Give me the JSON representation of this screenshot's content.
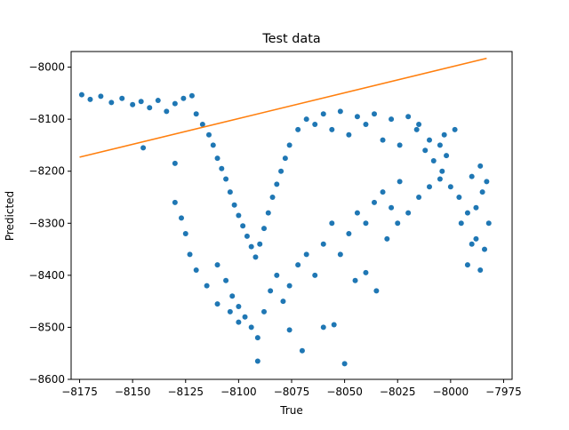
{
  "chart_data": {
    "type": "scatter",
    "title": "Test data",
    "xlabel": "True",
    "ylabel": "Predicted",
    "xlim": [
      -8179,
      -7971
    ],
    "ylim": [
      -8600,
      -7970
    ],
    "xticks": [
      -8175,
      -8150,
      -8125,
      -8100,
      -8075,
      -8050,
      -8025,
      -8000,
      -7975
    ],
    "xtick_labels": [
      "−8175",
      "−8150",
      "−8125",
      "−8100",
      "−8075",
      "−8050",
      "−8025",
      "−8000",
      "−7975"
    ],
    "yticks": [
      -8600,
      -8500,
      -8400,
      -8300,
      -8200,
      -8100,
      -8000
    ],
    "ytick_labels": [
      "−8600",
      "−8500",
      "−8400",
      "−8300",
      "−8200",
      "−8100",
      "−8000"
    ],
    "grid": false,
    "colors": {
      "scatter": "#1f77b4",
      "line": "#ff7f0e"
    },
    "series": [
      {
        "kind": "scatter",
        "points": [
          [
            -8174,
            -8053
          ],
          [
            -8170,
            -8062
          ],
          [
            -8165,
            -8056
          ],
          [
            -8160,
            -8068
          ],
          [
            -8155,
            -8060
          ],
          [
            -8150,
            -8072
          ],
          [
            -8146,
            -8066
          ],
          [
            -8142,
            -8078
          ],
          [
            -8138,
            -8064
          ],
          [
            -8134,
            -8085
          ],
          [
            -8130,
            -8070
          ],
          [
            -8126,
            -8060
          ],
          [
            -8122,
            -8055
          ],
          [
            -8120,
            -8090
          ],
          [
            -8117,
            -8110
          ],
          [
            -8114,
            -8130
          ],
          [
            -8112,
            -8150
          ],
          [
            -8110,
            -8175
          ],
          [
            -8108,
            -8195
          ],
          [
            -8106,
            -8215
          ],
          [
            -8104,
            -8240
          ],
          [
            -8102,
            -8265
          ],
          [
            -8100,
            -8285
          ],
          [
            -8098,
            -8305
          ],
          [
            -8096,
            -8325
          ],
          [
            -8094,
            -8345
          ],
          [
            -8092,
            -8365
          ],
          [
            -8090,
            -8340
          ],
          [
            -8088,
            -8310
          ],
          [
            -8086,
            -8280
          ],
          [
            -8084,
            -8250
          ],
          [
            -8082,
            -8225
          ],
          [
            -8080,
            -8200
          ],
          [
            -8078,
            -8175
          ],
          [
            -8076,
            -8150
          ],
          [
            -8072,
            -8120
          ],
          [
            -8068,
            -8100
          ],
          [
            -8064,
            -8110
          ],
          [
            -8060,
            -8090
          ],
          [
            -8056,
            -8120
          ],
          [
            -8052,
            -8085
          ],
          [
            -8048,
            -8130
          ],
          [
            -8044,
            -8095
          ],
          [
            -8040,
            -8110
          ],
          [
            -8036,
            -8090
          ],
          [
            -8032,
            -8140
          ],
          [
            -8028,
            -8100
          ],
          [
            -8024,
            -8150
          ],
          [
            -8020,
            -8095
          ],
          [
            -8016,
            -8120
          ],
          [
            -8012,
            -8160
          ],
          [
            -8008,
            -8180
          ],
          [
            -8004,
            -8200
          ],
          [
            -8000,
            -8230
          ],
          [
            -7996,
            -8250
          ],
          [
            -7992,
            -8280
          ],
          [
            -7988,
            -8330
          ],
          [
            -7985,
            -8240
          ],
          [
            -7983,
            -8220
          ],
          [
            -8110,
            -8380
          ],
          [
            -8106,
            -8410
          ],
          [
            -8103,
            -8440
          ],
          [
            -8100,
            -8460
          ],
          [
            -8097,
            -8480
          ],
          [
            -8094,
            -8500
          ],
          [
            -8091,
            -8520
          ],
          [
            -8088,
            -8470
          ],
          [
            -8085,
            -8430
          ],
          [
            -8082,
            -8400
          ],
          [
            -8079,
            -8450
          ],
          [
            -8076,
            -8420
          ],
          [
            -8072,
            -8380
          ],
          [
            -8068,
            -8360
          ],
          [
            -8064,
            -8400
          ],
          [
            -8060,
            -8340
          ],
          [
            -8056,
            -8300
          ],
          [
            -8052,
            -8360
          ],
          [
            -8048,
            -8320
          ],
          [
            -8044,
            -8280
          ],
          [
            -8040,
            -8300
          ],
          [
            -8036,
            -8260
          ],
          [
            -8032,
            -8240
          ],
          [
            -8028,
            -8270
          ],
          [
            -8024,
            -8220
          ],
          [
            -8091,
            -8565
          ],
          [
            -8070,
            -8545
          ],
          [
            -8050,
            -8570
          ],
          [
            -8060,
            -8500
          ],
          [
            -8055,
            -8495
          ],
          [
            -8076,
            -8505
          ],
          [
            -8100,
            -8490
          ],
          [
            -8104,
            -8470
          ],
          [
            -8110,
            -8455
          ],
          [
            -8115,
            -8420
          ],
          [
            -8120,
            -8390
          ],
          [
            -8123,
            -8360
          ],
          [
            -8125,
            -8320
          ],
          [
            -8127,
            -8290
          ],
          [
            -8130,
            -8260
          ],
          [
            -8145,
            -8155
          ],
          [
            -8130,
            -8185
          ],
          [
            -8035,
            -8430
          ],
          [
            -8040,
            -8395
          ],
          [
            -8045,
            -8410
          ],
          [
            -8030,
            -8330
          ],
          [
            -8025,
            -8300
          ],
          [
            -8020,
            -8280
          ],
          [
            -8015,
            -8250
          ],
          [
            -8010,
            -8230
          ],
          [
            -8005,
            -8215
          ],
          [
            -7995,
            -8300
          ],
          [
            -7992,
            -8380
          ],
          [
            -7990,
            -8340
          ],
          [
            -7988,
            -8270
          ],
          [
            -7986,
            -8390
          ],
          [
            -7984,
            -8350
          ],
          [
            -7982,
            -8300
          ],
          [
            -7990,
            -8210
          ],
          [
            -7986,
            -8190
          ],
          [
            -8005,
            -8150
          ],
          [
            -8003,
            -8130
          ],
          [
            -7998,
            -8120
          ],
          [
            -8002,
            -8170
          ],
          [
            -8010,
            -8140
          ],
          [
            -8015,
            -8110
          ]
        ]
      },
      {
        "kind": "line",
        "points": [
          [
            -8175,
            -8173
          ],
          [
            -7983,
            -7983
          ]
        ]
      }
    ]
  }
}
